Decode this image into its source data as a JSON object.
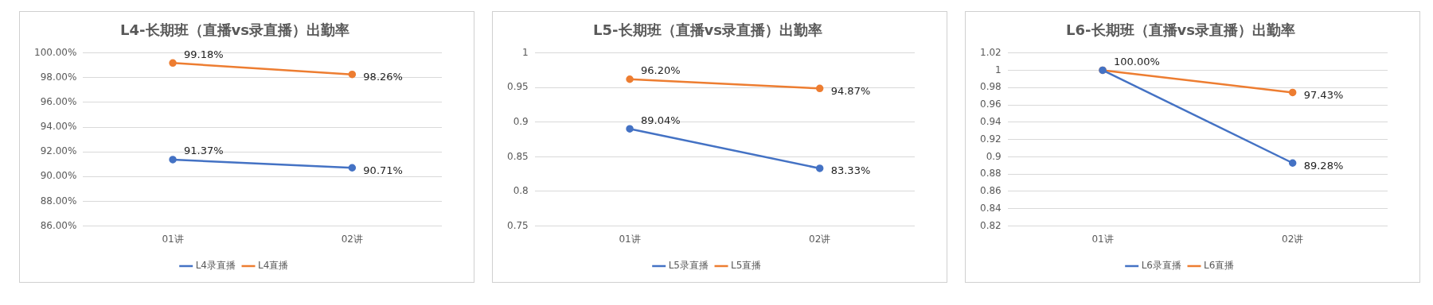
{
  "chart_data": [
    {
      "type": "line",
      "title": "L4-长期班（直播vs录直播）出勤率",
      "categories": [
        "01讲",
        "02讲"
      ],
      "series": [
        {
          "name": "L4录直播",
          "color": "#4472c4",
          "values": [
            91.37,
            90.71
          ],
          "value_labels": [
            "91.37%",
            "90.71%"
          ]
        },
        {
          "name": "L4直播",
          "color": "#ed7d31",
          "values": [
            99.18,
            98.26
          ],
          "value_labels": [
            "99.18%",
            "98.26%"
          ]
        }
      ],
      "ylim": [
        86,
        100
      ],
      "yticks": [
        {
          "value": 86,
          "label": "86.00%"
        },
        {
          "value": 88,
          "label": "88.00%"
        },
        {
          "value": 90,
          "label": "90.00%"
        },
        {
          "value": 92,
          "label": "92.00%"
        },
        {
          "value": 94,
          "label": "94.00%"
        },
        {
          "value": 96,
          "label": "96.00%"
        },
        {
          "value": 98,
          "label": "98.00%"
        },
        {
          "value": 100,
          "label": "100.00%"
        }
      ],
      "grid": "y",
      "legend": "bottom",
      "marker": "circle"
    },
    {
      "type": "line",
      "title": "L5-长期班（直播vs录直播）出勤率",
      "categories": [
        "01讲",
        "02讲"
      ],
      "series": [
        {
          "name": "L5录直播",
          "color": "#4472c4",
          "values": [
            0.8904,
            0.8333
          ],
          "value_labels": [
            "89.04%",
            "83.33%"
          ]
        },
        {
          "name": "L5直播",
          "color": "#ed7d31",
          "values": [
            0.962,
            0.9487
          ],
          "value_labels": [
            "96.20%",
            "94.87%"
          ]
        }
      ],
      "ylim": [
        0.75,
        1
      ],
      "yticks": [
        0.75,
        0.8,
        0.85,
        0.9,
        0.95,
        1
      ],
      "grid": "y",
      "legend": "bottom",
      "marker": "circle"
    },
    {
      "type": "line",
      "title": "L6-长期班（直播vs录直播）出勤率",
      "categories": [
        "01讲",
        "02讲"
      ],
      "series": [
        {
          "name": "L6录直播",
          "color": "#4472c4",
          "values": [
            1,
            0.8928
          ],
          "value_labels": [
            null,
            "89.28%"
          ]
        },
        {
          "name": "L6直播",
          "color": "#ed7d31",
          "values": [
            1,
            0.9743
          ],
          "value_labels": [
            "100.00%",
            "97.43%"
          ]
        }
      ],
      "ylim": [
        0.82,
        1.02
      ],
      "yticks": [
        0.82,
        0.84,
        0.86,
        0.88,
        0.9,
        0.92,
        0.94,
        0.96,
        0.98,
        1,
        1.02
      ],
      "grid": "y",
      "legend": "bottom",
      "marker": "circle"
    }
  ]
}
